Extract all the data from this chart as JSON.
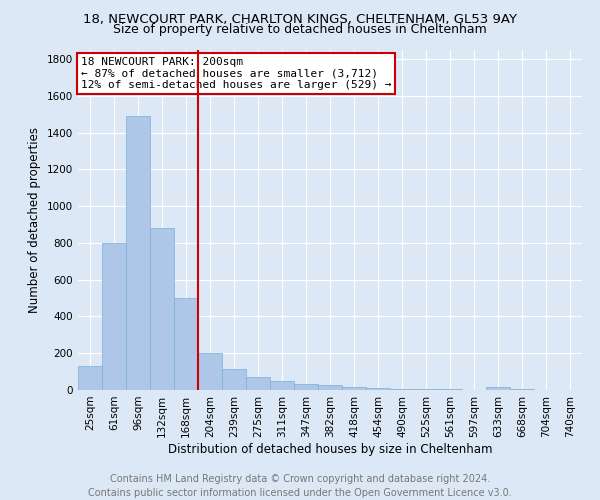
{
  "title": "18, NEWCOURT PARK, CHARLTON KINGS, CHELTENHAM, GL53 9AY",
  "subtitle": "Size of property relative to detached houses in Cheltenham",
  "xlabel": "Distribution of detached houses by size in Cheltenham",
  "ylabel": "Number of detached properties",
  "footnote": "Contains HM Land Registry data © Crown copyright and database right 2024.\nContains public sector information licensed under the Open Government Licence v3.0.",
  "categories": [
    "25sqm",
    "61sqm",
    "96sqm",
    "132sqm",
    "168sqm",
    "204sqm",
    "239sqm",
    "275sqm",
    "311sqm",
    "347sqm",
    "382sqm",
    "418sqm",
    "454sqm",
    "490sqm",
    "525sqm",
    "561sqm",
    "597sqm",
    "633sqm",
    "668sqm",
    "704sqm",
    "740sqm"
  ],
  "values": [
    130,
    800,
    1490,
    880,
    500,
    200,
    115,
    70,
    50,
    35,
    25,
    15,
    10,
    5,
    5,
    5,
    0,
    15,
    5,
    0,
    0
  ],
  "bar_color": "#aec6e8",
  "bar_edge_color": "#7aafd4",
  "vline_index": 5,
  "vline_color": "#cc0000",
  "annotation_line1": "18 NEWCOURT PARK: 200sqm",
  "annotation_line2": "← 87% of detached houses are smaller (3,712)",
  "annotation_line3": "12% of semi-detached houses are larger (529) →",
  "annotation_box_color": "#cc0000",
  "annotation_bg_color": "#ffffff",
  "ylim": [
    0,
    1850
  ],
  "yticks": [
    0,
    200,
    400,
    600,
    800,
    1000,
    1200,
    1400,
    1600,
    1800
  ],
  "background_color": "#dce8f5",
  "grid_color": "#ffffff",
  "title_fontsize": 9.5,
  "subtitle_fontsize": 9,
  "xlabel_fontsize": 8.5,
  "ylabel_fontsize": 8.5,
  "tick_fontsize": 7.5,
  "annotation_fontsize": 8,
  "footnote_fontsize": 7
}
